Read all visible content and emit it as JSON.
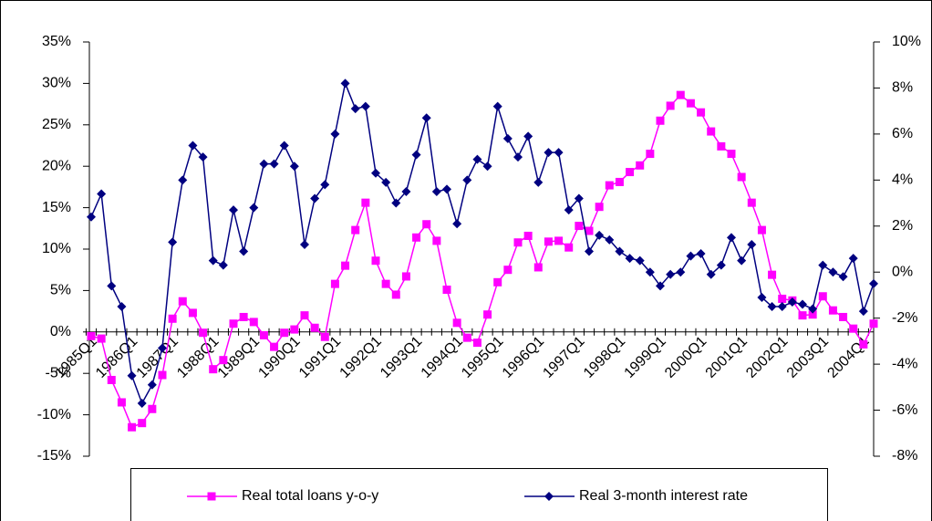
{
  "chart_data": {
    "type": "line",
    "categories": [
      "1985Q1",
      null,
      null,
      null,
      "1986Q1",
      null,
      null,
      null,
      "1987Q1",
      null,
      null,
      null,
      "1988Q1",
      null,
      null,
      null,
      "1989Q1",
      null,
      null,
      null,
      "1990Q1",
      null,
      null,
      null,
      "1991Q1",
      null,
      null,
      null,
      "1992Q1",
      null,
      null,
      null,
      "1993Q1",
      null,
      null,
      null,
      "1994Q1",
      null,
      null,
      null,
      "1995Q1",
      null,
      null,
      null,
      "1996Q1",
      null,
      null,
      null,
      "1997Q1",
      null,
      null,
      null,
      "1998Q1",
      null,
      null,
      null,
      "1999Q1",
      null,
      null,
      null,
      "2000Q1",
      null,
      null,
      null,
      "2001Q1",
      null,
      null,
      null,
      "2002Q1",
      null,
      null,
      null,
      "2003Q1",
      null,
      null,
      null,
      "2004Q1",
      null
    ],
    "series": [
      {
        "name": "Real total loans y-o-y",
        "color": "#ff00ff",
        "marker": "square",
        "axis": "y",
        "values": [
          -0.5,
          -0.8,
          -5.8,
          -8.5,
          -11.5,
          -11,
          -9.3,
          -5.2,
          1.6,
          3.7,
          2.3,
          -0.1,
          -4.5,
          -3.4,
          1,
          1.8,
          1.2,
          -0.4,
          -1.8,
          -0.1,
          0.3,
          2,
          0.5,
          -0.6,
          5.8,
          8,
          12.3,
          15.6,
          8.6,
          5.8,
          4.5,
          6.7,
          11.4,
          13,
          11,
          5.1,
          1.1,
          -0.7,
          -1.3,
          2.1,
          6,
          7.5,
          10.8,
          11.6,
          7.8,
          10.9,
          11,
          10.2,
          12.8,
          12.2,
          15.1,
          17.7,
          18.1,
          19.3,
          20.1,
          21.5,
          25.5,
          27.3,
          28.6,
          27.6,
          26.5,
          24.2,
          22.4,
          21.5,
          18.7,
          15.6,
          12.3,
          6.9,
          4,
          3.8,
          2,
          2.1,
          4.3,
          2.6,
          1.8,
          0.4,
          -1.5,
          1
        ]
      },
      {
        "name": "Real 3-month interest rate",
        "color": "#000080",
        "marker": "diamond",
        "axis": "y2",
        "values": [
          2.4,
          3.4,
          -0.6,
          -1.5,
          -4.5,
          -5.7,
          -4.9,
          -3.3,
          1.3,
          4,
          5.5,
          5,
          0.5,
          0.3,
          2.7,
          0.9,
          2.8,
          4.7,
          4.7,
          5.5,
          4.6,
          1.2,
          3.2,
          3.8,
          6,
          8.2,
          7.1,
          7.2,
          4.3,
          3.9,
          3,
          3.5,
          5.1,
          6.7,
          3.5,
          3.6,
          2.1,
          4,
          4.9,
          4.6,
          7.2,
          5.8,
          5,
          5.9,
          3.9,
          5.2,
          5.2,
          2.7,
          3.2,
          0.9,
          1.6,
          1.4,
          0.9,
          0.6,
          0.5,
          0,
          -0.6,
          -0.1,
          0,
          0.7,
          0.8,
          -0.1,
          0.3,
          1.5,
          0.5,
          1.2,
          -1.1,
          -1.5,
          -1.5,
          -1.3,
          -1.4,
          -1.6,
          0.3,
          0,
          -0.2,
          0.6,
          -1.7,
          -0.5
        ]
      }
    ],
    "ylim": [
      -15,
      35
    ],
    "yticks": [
      {
        "value": -15,
        "label": "-15%"
      },
      {
        "value": -10,
        "label": "-10%"
      },
      {
        "value": -5,
        "label": "-5%"
      },
      {
        "value": 0,
        "label": "0%"
      },
      {
        "value": 5,
        "label": "5%"
      },
      {
        "value": 10,
        "label": "10%"
      },
      {
        "value": 15,
        "label": "15%"
      },
      {
        "value": 20,
        "label": "20%"
      },
      {
        "value": 25,
        "label": "25%"
      },
      {
        "value": 30,
        "label": "30%"
      },
      {
        "value": 35,
        "label": "35%"
      }
    ],
    "y2lim": [
      -8,
      10
    ],
    "y2ticks": [
      {
        "value": -8,
        "label": "-8%"
      },
      {
        "value": -6,
        "label": "-6%"
      },
      {
        "value": -4,
        "label": "-4%"
      },
      {
        "value": -2,
        "label": "-2%"
      },
      {
        "value": 0,
        "label": "0%"
      },
      {
        "value": 2,
        "label": "2%"
      },
      {
        "value": 4,
        "label": "4%"
      },
      {
        "value": 6,
        "label": "6%"
      },
      {
        "value": 8,
        "label": "8%"
      },
      {
        "value": 10,
        "label": "10%"
      }
    ],
    "grid": false,
    "legend": "bottom"
  }
}
